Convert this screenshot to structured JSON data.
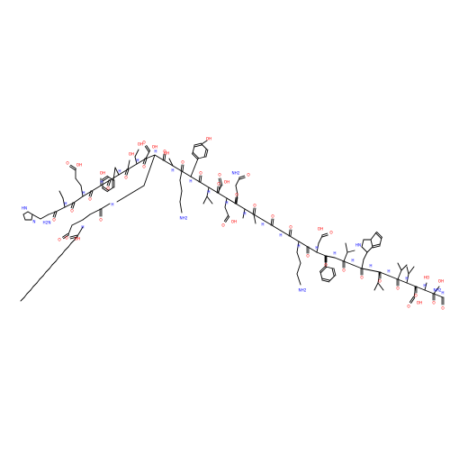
{
  "structure": {
    "kind": "peptide skeletal formula",
    "residues": [
      "H",
      "Aib",
      "E",
      "G",
      "T",
      "F",
      "T",
      "S",
      "D",
      "K",
      "S",
      "K",
      "Y",
      "L",
      "D",
      "E",
      "Q",
      "A",
      "A",
      "K",
      "E",
      "F",
      "I",
      "A",
      "W",
      "L",
      "V",
      "K",
      "G",
      "R",
      "G"
    ],
    "lipid": "C16 fatty acid + gamma-Glu on Lys side chain"
  },
  "atom_labels": {
    "O": "O",
    "N": "N",
    "OH": "OH",
    "HO": "HO",
    "NH2": "NH2",
    "H2N": "H2N",
    "NH": "NH",
    "HN": "HN",
    "H": "H"
  },
  "colors": {
    "bond": "#000000",
    "oxygen": "#ff0000",
    "nitrogen": "#0000ff"
  }
}
